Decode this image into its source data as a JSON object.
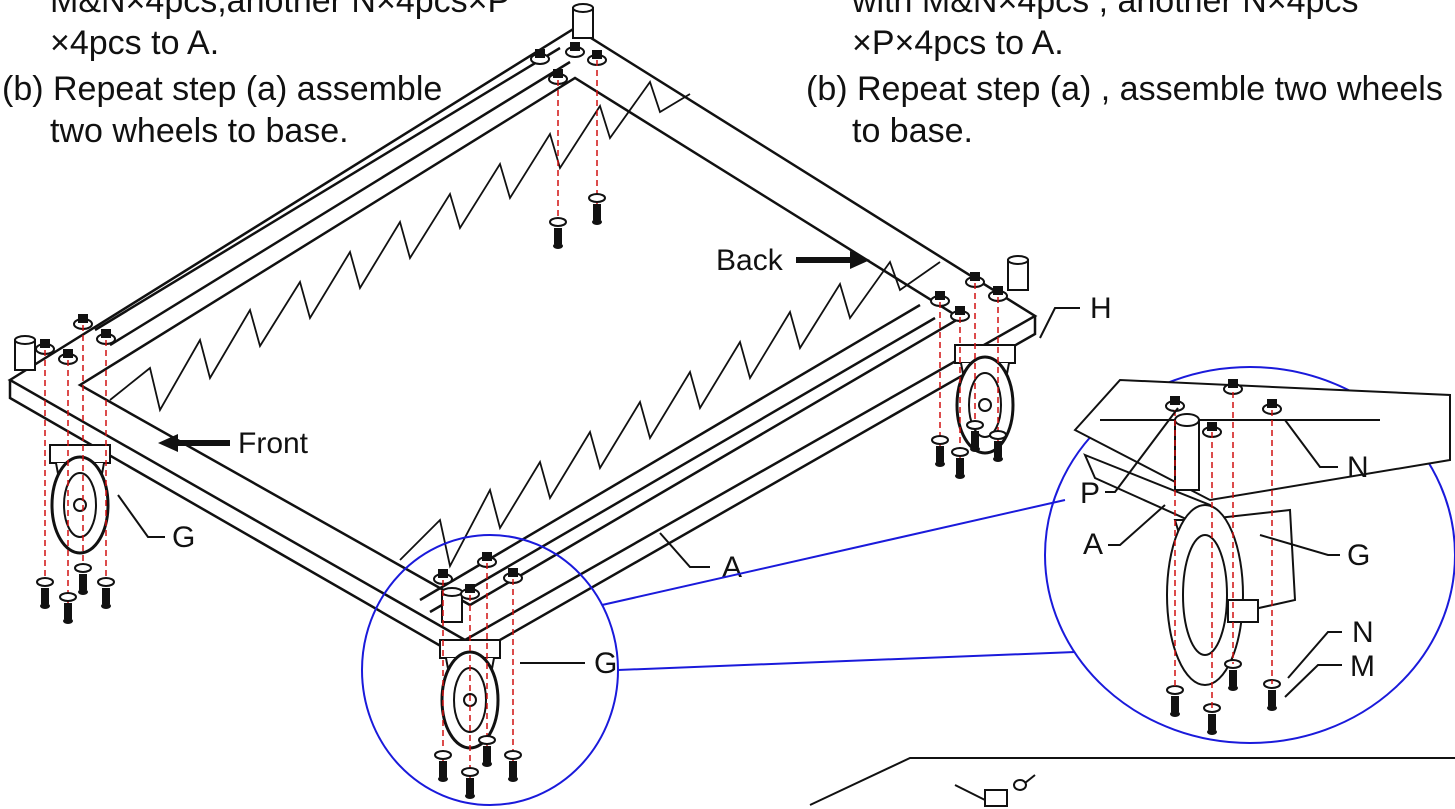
{
  "instructions": {
    "left": {
      "line1": "M&N×4pcs,another N×4pcs×P",
      "line2": "×4pcs to A.",
      "line3": "(b) Repeat step (a) assemble",
      "line4": "two wheels to base."
    },
    "right": {
      "line1": "with M&N×4pcs , another N×4pcs",
      "line2": "×P×4pcs to A.",
      "line3": "(b) Repeat step (a) , assemble two wheels",
      "line4": "to base."
    }
  },
  "labels": {
    "back": "Back",
    "front": "Front",
    "h": "H",
    "g_left": "G",
    "a_main": "A",
    "g_front": "G",
    "n_top": "N",
    "p": "P",
    "a_detail": "A",
    "g_detail": "G",
    "n_bottom": "N",
    "m": "M"
  },
  "colors": {
    "line": "#111111",
    "callout": "#1a1adb",
    "screw_axis": "#d01010"
  }
}
